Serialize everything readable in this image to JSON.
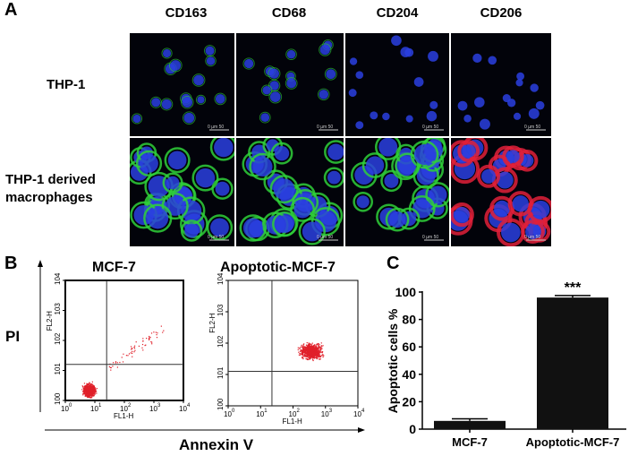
{
  "panelA": {
    "letter": "A",
    "markers": [
      "CD163",
      "CD68",
      "CD204",
      "CD206"
    ],
    "rows": [
      {
        "label": "THP-1"
      },
      {
        "label": "THP-1 derived macrophages",
        "lines": [
          "THP-1 derived",
          "macrophages"
        ]
      }
    ],
    "scalebar_text": "0   µm 50",
    "colors": {
      "nucleus": "#2a3fe0",
      "CD163": "#2fd03a",
      "CD68": "#2fd03a",
      "CD204": "#2fd03a",
      "CD206": "#e0203a"
    }
  },
  "panelB": {
    "letter": "B",
    "y_label": "PI",
    "x_label": "Annexin V",
    "plots": [
      {
        "title": "MCF-7",
        "xlabel": "FL1-H",
        "ylabel": "FL2-H"
      },
      {
        "title": "Apoptotic-MCF-7",
        "xlabel": "FL1-H",
        "ylabel": "FL2-H"
      }
    ],
    "ticks": [
      "10",
      "10",
      "10",
      "10",
      "10"
    ],
    "exponents": [
      "0",
      "1",
      "2",
      "3",
      "4"
    ],
    "scale": "log",
    "range": [
      1,
      10000
    ],
    "point_color": "#e0202a"
  },
  "chart_data": {
    "type": "bar",
    "letter": "C",
    "categories": [
      "MCF-7",
      "Apoptotic-MCF-7"
    ],
    "values": [
      6,
      96
    ],
    "errors": [
      1.5,
      1.5
    ],
    "ylabel": "Apoptotic cells %",
    "ylim": [
      0,
      100
    ],
    "yticks": [
      "0",
      "20",
      "40",
      "60",
      "80",
      "100"
    ],
    "annotation": "***",
    "bar_color": "#111111",
    "grid": false
  }
}
